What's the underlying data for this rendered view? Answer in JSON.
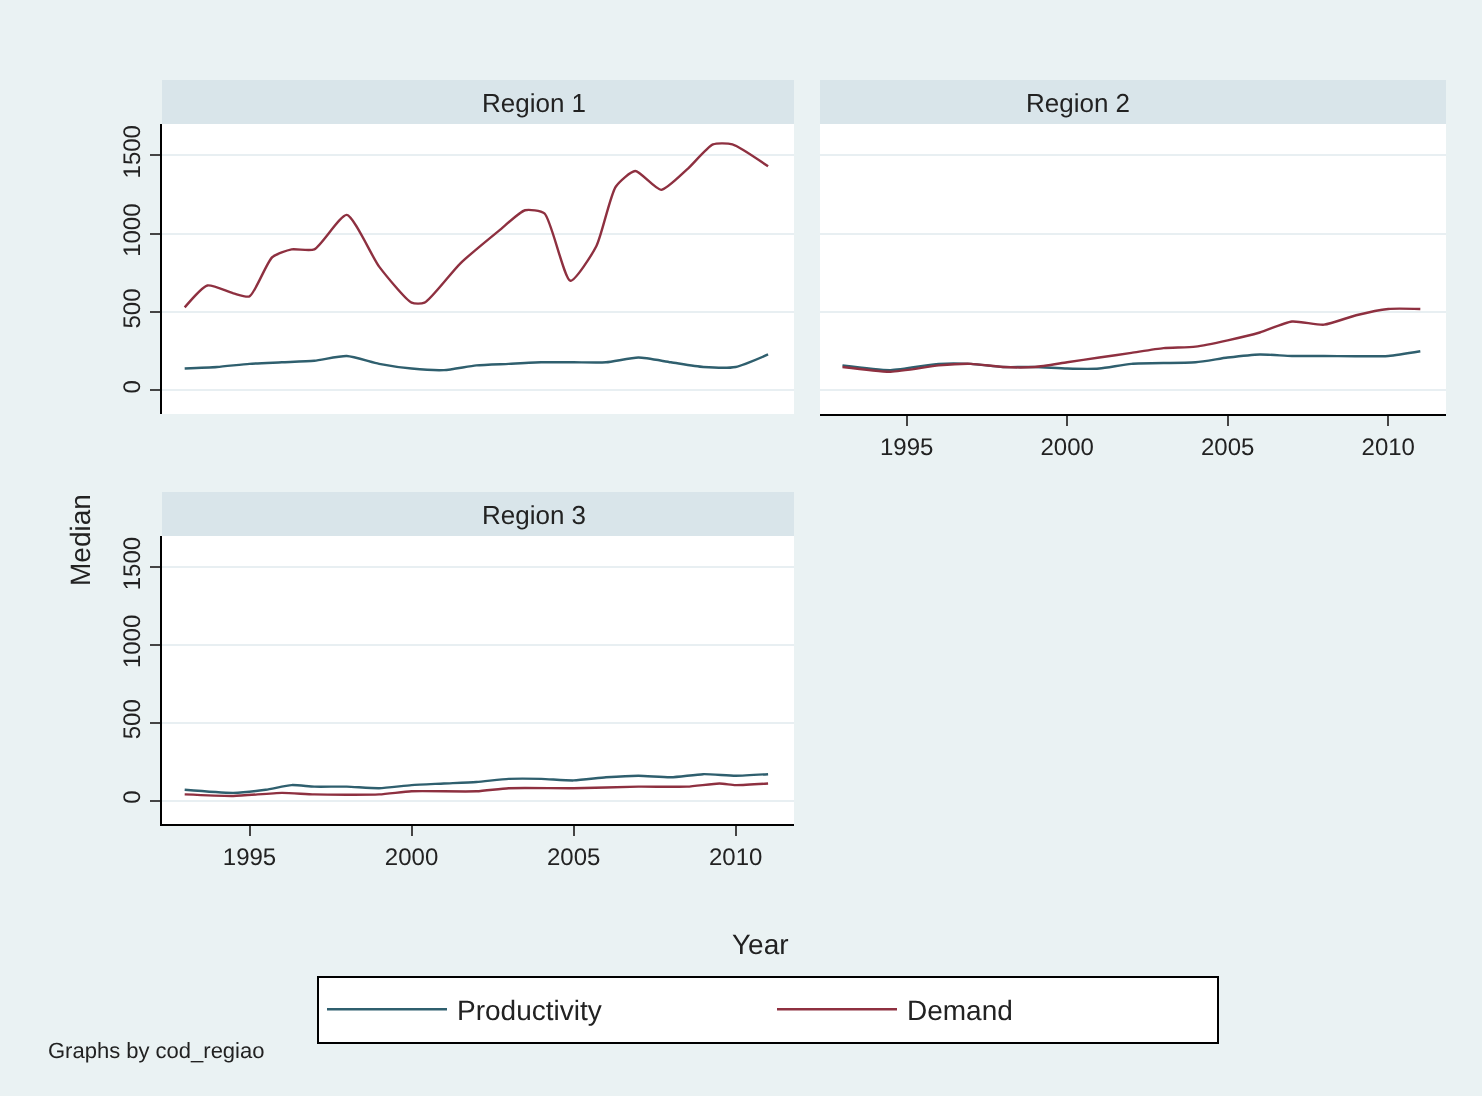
{
  "chart_data": [
    {
      "type": "line",
      "title": "Region 1",
      "xlim": [
        1992.3,
        2011.8
      ],
      "xticks": [
        1995,
        2000,
        2005,
        2010
      ],
      "ylim": [
        -150,
        1700
      ],
      "yticks": [
        0,
        500,
        1000,
        1500
      ],
      "tick_labels": "y",
      "grid": "y",
      "legend": "bottom",
      "series": [
        {
          "name": "Productivity",
          "color": "#2f5f6e",
          "x": [
            1993,
            1994,
            1995,
            1996,
            1997,
            1998,
            1999,
            2000,
            2001,
            2002,
            2003,
            2004,
            2005,
            2006,
            2007,
            2008,
            2009,
            2010,
            2011
          ],
          "values": [
            140,
            150,
            170,
            180,
            190,
            220,
            170,
            140,
            130,
            160,
            170,
            180,
            180,
            180,
            210,
            180,
            150,
            150,
            230
          ]
        },
        {
          "name": "Demand",
          "color": "#8e3040",
          "x": [
            1993,
            1993.7,
            1994.5,
            1995,
            1995.7,
            1996.3,
            1997,
            1998,
            1999,
            2000,
            2000.4,
            2001.5,
            2002.7,
            2003.5,
            2004.1,
            2004.9,
            2005.7,
            2006.3,
            2006.9,
            2007.7,
            2008.5,
            2009.3,
            2009.9,
            2011
          ],
          "values": [
            530,
            670,
            620,
            600,
            850,
            900,
            900,
            1120,
            790,
            560,
            560,
            810,
            1020,
            1150,
            1130,
            700,
            920,
            1300,
            1400,
            1280,
            1410,
            1570,
            1570,
            1430
          ]
        }
      ]
    },
    {
      "type": "line",
      "title": "Region 2",
      "xlim": [
        1992.3,
        2011.8
      ],
      "xticks": [
        1995,
        2000,
        2005,
        2010
      ],
      "ylim": [
        -150,
        1700
      ],
      "yticks": [
        0,
        500,
        1000,
        1500
      ],
      "tick_labels": "x",
      "grid": "y",
      "series": [
        {
          "color": "#2f5f6e",
          "x": [
            1993,
            1994.5,
            1996,
            1997,
            1998,
            1999,
            2000,
            2001,
            2002,
            2004,
            2005,
            2006,
            2007,
            2008,
            2010,
            2011
          ],
          "values": [
            160,
            130,
            170,
            170,
            150,
            150,
            140,
            140,
            170,
            180,
            210,
            230,
            220,
            220,
            220,
            250
          ]
        },
        {
          "color": "#8e3040",
          "x": [
            1993,
            1994.5,
            1996,
            1997,
            1998,
            1999,
            2000,
            2001,
            2002,
            2003,
            2004,
            2005,
            2006,
            2007,
            2008,
            2009,
            2010,
            2011
          ],
          "values": [
            150,
            120,
            160,
            170,
            150,
            150,
            180,
            210,
            240,
            270,
            280,
            320,
            370,
            440,
            420,
            480,
            520,
            520
          ]
        }
      ]
    },
    {
      "type": "line",
      "title": "Region 3",
      "xlim": [
        1992.3,
        2011.8
      ],
      "xticks": [
        1995,
        2000,
        2005,
        2010
      ],
      "ylim": [
        -150,
        1700
      ],
      "yticks": [
        0,
        500,
        1000,
        1500
      ],
      "grid": "y",
      "xlabel": "Year",
      "ylabel": "Median",
      "annotations": [
        "Graphs by cod_regiao"
      ],
      "series": [
        {
          "color": "#2f5f6e",
          "x": [
            1993,
            1994.5,
            1995.5,
            1996.3,
            1997,
            1998,
            1999,
            2000,
            2001,
            2002,
            2003,
            2004,
            2005,
            2006,
            2007,
            2008,
            2009,
            2010,
            2011
          ],
          "values": [
            70,
            50,
            70,
            100,
            90,
            90,
            80,
            100,
            110,
            120,
            140,
            140,
            130,
            150,
            160,
            150,
            170,
            160,
            170
          ]
        },
        {
          "color": "#8e3040",
          "x": [
            1993,
            1994.5,
            1996,
            1997,
            1999,
            2000,
            2002,
            2003,
            2005,
            2007,
            2008.5,
            2009.5,
            2010,
            2011
          ],
          "values": [
            40,
            30,
            50,
            40,
            40,
            60,
            60,
            80,
            80,
            90,
            90,
            110,
            100,
            110
          ]
        }
      ]
    }
  ]
}
